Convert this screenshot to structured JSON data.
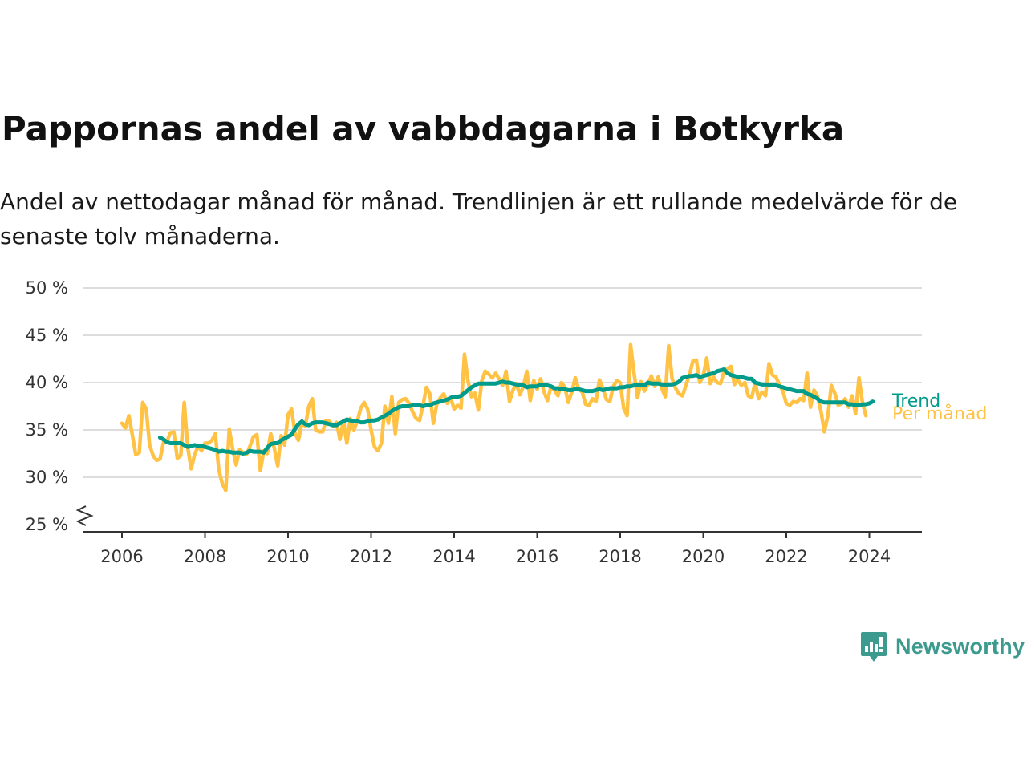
{
  "header": {
    "title": "Pappornas andel av vabbdagarna i Botkyrka",
    "subtitle": "Andel av nettodagar månad för månad. Trendlinjen är ett rullande medelvärde för de senaste tolv månaderna."
  },
  "brand": {
    "name": "Newsworthy",
    "color": "#3d9a8f"
  },
  "colors": {
    "monthly": "#ffc244",
    "trend": "#009b8a",
    "grid": "#dddddd",
    "axis": "#333333"
  },
  "chart_data": {
    "type": "line",
    "title": "Pappornas andel av vabbdagarna i Botkyrka",
    "x_ticks": [
      "2006",
      "2008",
      "2010",
      "2012",
      "2014",
      "2016",
      "2018",
      "2020",
      "2022",
      "2024"
    ],
    "y_ticks": [
      "25 %",
      "30 %",
      "35 %",
      "40 %",
      "45 %",
      "50 %"
    ],
    "ylim": [
      25,
      50
    ],
    "y_axis_break": true,
    "grid": "horizontal",
    "legend": "inline labels at line ends",
    "series": [
      {
        "name": "Per månad",
        "color": "#ffc244",
        "start": "2006-01",
        "values": [
          35.7,
          35.2,
          36.5,
          34.5,
          32.4,
          32.6,
          37.9,
          37.2,
          33.4,
          32.3,
          31.8,
          31.9,
          33.7,
          33.8,
          34.7,
          34.8,
          32.0,
          32.3,
          37.9,
          33.2,
          30.9,
          32.4,
          33.3,
          32.8,
          33.6,
          33.6,
          33.9,
          34.6,
          30.8,
          29.3,
          28.6,
          35.1,
          33.0,
          31.3,
          32.9,
          32.6,
          32.4,
          33.3,
          34.3,
          34.5,
          30.7,
          32.8,
          32.5,
          34.6,
          33.1,
          31.2,
          34.4,
          33.4,
          36.6,
          37.2,
          34.7,
          33.9,
          35.7,
          35.4,
          37.5,
          38.3,
          35.0,
          34.8,
          34.8,
          36.0,
          35.9,
          35.4,
          35.8,
          34.0,
          36.0,
          33.6,
          36.2,
          35.0,
          35.9,
          37.3,
          37.9,
          37.2,
          35.0,
          33.2,
          32.8,
          33.6,
          37.5,
          35.7,
          38.5,
          34.6,
          37.9,
          38.2,
          38.3,
          37.8,
          36.9,
          36.2,
          36.0,
          37.6,
          39.5,
          38.8,
          35.7,
          37.7,
          38.4,
          38.8,
          37.8,
          38.4,
          37.2,
          37.6,
          37.3,
          43.0,
          40.2,
          38.5,
          38.9,
          37.1,
          40.2,
          41.2,
          40.9,
          40.5,
          41.0,
          40.4,
          39.7,
          41.2,
          38.0,
          39.2,
          39.9,
          38.7,
          39.6,
          41.2,
          38.1,
          40.2,
          39.3,
          40.4,
          39.0,
          38.1,
          39.6,
          39.2,
          38.6,
          40.0,
          39.5,
          37.9,
          39.0,
          40.5,
          39.3,
          39.0,
          37.7,
          37.6,
          38.3,
          38.0,
          40.3,
          39.4,
          38.2,
          38.0,
          39.6,
          40.2,
          40.0,
          37.3,
          36.5,
          44.0,
          41.0,
          38.4,
          40.1,
          39.1,
          39.8,
          40.7,
          39.6,
          40.6,
          39.4,
          38.5,
          43.9,
          40.4,
          39.4,
          38.8,
          38.6,
          39.7,
          40.8,
          42.3,
          42.4,
          40.0,
          40.7,
          42.6,
          39.9,
          40.6,
          40.0,
          39.9,
          41.2,
          41.5,
          41.7,
          39.8,
          40.3,
          39.7,
          40.0,
          38.6,
          38.4,
          40.0,
          38.3,
          39.0,
          38.6,
          42.0,
          40.8,
          40.6,
          39.8,
          39.1,
          37.8,
          37.6,
          38.0,
          37.9,
          38.3,
          38.1,
          41.0,
          37.4,
          39.2,
          38.6,
          37.0,
          34.8,
          36.5,
          39.7,
          38.9,
          37.6,
          37.8,
          38.3,
          37.4,
          38.6,
          36.7,
          40.5,
          37.9,
          36.5
        ]
      },
      {
        "name": "Trend",
        "color": "#009b8a",
        "start": "2006-12",
        "values": [
          34.2,
          34.0,
          33.7,
          33.6,
          33.6,
          33.6,
          33.6,
          33.4,
          33.2,
          33.3,
          33.4,
          33.3,
          33.3,
          33.2,
          33.1,
          33.0,
          32.9,
          32.7,
          32.8,
          32.7,
          32.7,
          32.6,
          32.6,
          32.6,
          32.5,
          32.6,
          32.8,
          32.7,
          32.7,
          32.7,
          32.6,
          33.1,
          33.5,
          33.6,
          33.6,
          33.9,
          34.1,
          34.3,
          34.5,
          35.1,
          35.6,
          35.9,
          35.6,
          35.5,
          35.7,
          35.8,
          35.8,
          35.8,
          35.7,
          35.6,
          35.5,
          35.5,
          35.7,
          35.9,
          36.1,
          36.0,
          35.9,
          35.9,
          35.8,
          35.8,
          35.9,
          36.0,
          36.0,
          36.1,
          36.3,
          36.5,
          36.7,
          37.0,
          37.2,
          37.4,
          37.5,
          37.5,
          37.5,
          37.6,
          37.6,
          37.6,
          37.5,
          37.6,
          37.6,
          37.8,
          37.9,
          38.0,
          38.1,
          38.2,
          38.4,
          38.5,
          38.5,
          38.6,
          38.9,
          39.2,
          39.5,
          39.7,
          39.9,
          39.9,
          39.9,
          39.9,
          39.9,
          39.9,
          40.0,
          40.1,
          40.0,
          40.0,
          39.9,
          39.8,
          39.7,
          39.7,
          39.5,
          39.6,
          39.6,
          39.6,
          39.8,
          39.7,
          39.7,
          39.6,
          39.4,
          39.4,
          39.3,
          39.3,
          39.2,
          39.2,
          39.3,
          39.3,
          39.2,
          39.1,
          39.1,
          39.1,
          39.2,
          39.3,
          39.2,
          39.3,
          39.4,
          39.4,
          39.4,
          39.5,
          39.5,
          39.6,
          39.6,
          39.7,
          39.7,
          39.7,
          39.7,
          40.0,
          39.9,
          39.9,
          39.9,
          39.8,
          39.8,
          39.8,
          39.8,
          39.9,
          40.1,
          40.5,
          40.6,
          40.7,
          40.7,
          40.8,
          40.6,
          40.7,
          40.8,
          40.9,
          41.0,
          41.2,
          41.3,
          41.4,
          41.0,
          40.8,
          40.7,
          40.6,
          40.6,
          40.5,
          40.4,
          40.4,
          40.0,
          39.9,
          39.8,
          39.8,
          39.8,
          39.7,
          39.7,
          39.6,
          39.5,
          39.4,
          39.3,
          39.2,
          39.1,
          39.1,
          39.1,
          38.8,
          38.7,
          38.5,
          38.3,
          38.0,
          37.9,
          37.9,
          37.9,
          37.9,
          37.9,
          37.9,
          37.9,
          37.7,
          37.7,
          37.6,
          37.6,
          37.7,
          37.7,
          37.8,
          38.0
        ]
      }
    ]
  }
}
